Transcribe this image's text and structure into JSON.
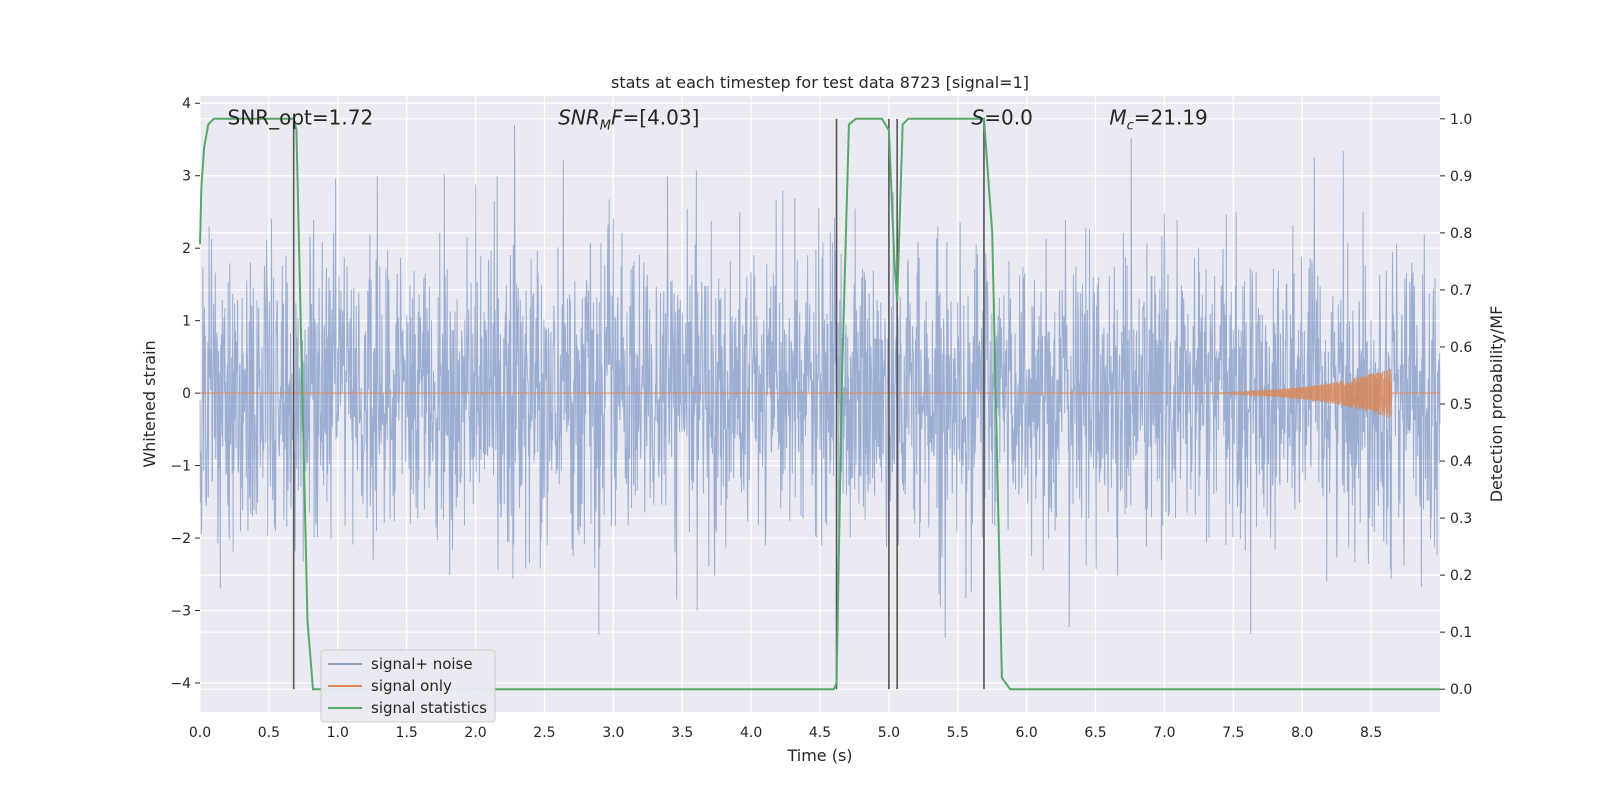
{
  "chart_data": {
    "type": "line",
    "title": "stats at each timestep for test data 8723 [signal=1]",
    "xlabel": "Time (s)",
    "ylabel_left": "Whitened strain",
    "ylabel_right": "Detection probability/MF",
    "xlim": [
      0.0,
      9.0
    ],
    "ylim_left": [
      -4.4,
      4.1
    ],
    "ylim_right": [
      -0.04,
      1.04
    ],
    "grid": true,
    "legend_position": "lower-left",
    "x_ticks": [
      "0.0",
      "0.5",
      "1.0",
      "1.5",
      "2.0",
      "2.5",
      "3.0",
      "3.5",
      "4.0",
      "4.5",
      "5.0",
      "5.5",
      "6.0",
      "6.5",
      "7.0",
      "7.5",
      "8.0",
      "8.5"
    ],
    "x_tick_values": [
      0.0,
      0.5,
      1.0,
      1.5,
      2.0,
      2.5,
      3.0,
      3.5,
      4.0,
      4.5,
      5.0,
      5.5,
      6.0,
      6.5,
      7.0,
      7.5,
      8.0,
      8.5
    ],
    "y_ticks_left": [
      "−4",
      "−3",
      "−2",
      "−1",
      "0",
      "1",
      "2",
      "3",
      "4"
    ],
    "y_tick_values_left": [
      -4,
      -3,
      -2,
      -1,
      0,
      1,
      2,
      3,
      4
    ],
    "y_ticks_right": [
      "0.0",
      "0.1",
      "0.2",
      "0.3",
      "0.4",
      "0.5",
      "0.6",
      "0.7",
      "0.8",
      "0.9",
      "1.0"
    ],
    "y_tick_values_right": [
      0.0,
      0.1,
      0.2,
      0.3,
      0.4,
      0.5,
      0.6,
      0.7,
      0.8,
      0.9,
      1.0
    ],
    "annotations": [
      {
        "text": "SNR_opt=1.72",
        "x": 0.2,
        "y": 3.8
      },
      {
        "text": "SNRMF=[4.03]",
        "x": 2.6,
        "y": 3.8
      },
      {
        "text": "S=0.0",
        "x": 5.6,
        "y": 3.8
      },
      {
        "text": "Mc=21.19",
        "x": 6.6,
        "y": 3.8
      }
    ],
    "vertical_lines_x": [
      0.68,
      4.62,
      5.0,
      5.06,
      5.69
    ],
    "series": [
      {
        "name": "signal+ noise",
        "color": "#4c72b0",
        "description_stats": {
          "noise_sigma": 1.0,
          "envelope_min": -4.0,
          "envelope_max": 3.7
        }
      },
      {
        "name": "signal only",
        "color": "#dd8452",
        "x_start": 6.9,
        "x_peak": 8.65,
        "peak_amplitude": 0.35
      },
      {
        "name": "signal statistics",
        "color": "#55a868",
        "axis": "right",
        "x": [
          0.0,
          0.01,
          0.03,
          0.06,
          0.1,
          0.2,
          0.3,
          0.4,
          0.5,
          0.6,
          0.68,
          0.7,
          0.74,
          0.78,
          0.82,
          1.0,
          2.0,
          3.0,
          4.0,
          4.5,
          4.6,
          4.62,
          4.66,
          4.71,
          4.76,
          4.8,
          4.9,
          4.95,
          5.0,
          5.04,
          5.06,
          5.1,
          5.14,
          5.2,
          5.3,
          5.4,
          5.5,
          5.6,
          5.69,
          5.75,
          5.82,
          5.88,
          6.0,
          7.0,
          8.0,
          9.0
        ],
        "y": [
          0.78,
          0.88,
          0.95,
          0.99,
          1.0,
          1.0,
          1.0,
          1.0,
          1.0,
          1.0,
          1.0,
          0.98,
          0.55,
          0.12,
          0.0,
          0.0,
          0.0,
          0.0,
          0.0,
          0.0,
          0.0,
          0.01,
          0.55,
          0.99,
          1.0,
          1.0,
          1.0,
          1.0,
          0.98,
          0.75,
          0.68,
          0.99,
          1.0,
          1.0,
          1.0,
          1.0,
          1.0,
          1.0,
          1.0,
          0.8,
          0.02,
          0.0,
          0.0,
          0.0,
          0.0,
          0.0
        ]
      }
    ]
  }
}
